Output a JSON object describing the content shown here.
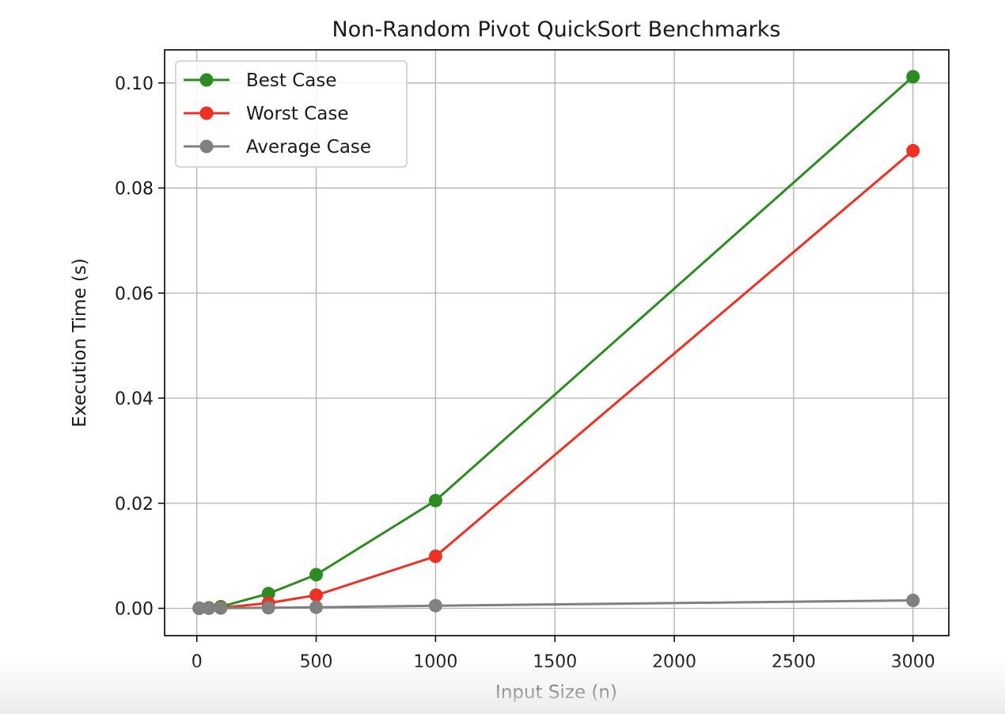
{
  "chart_data": {
    "type": "line",
    "title": "Non-Random Pivot QuickSort Benchmarks",
    "xlabel": "Input Size (n)",
    "ylabel": "Execution Time (s)",
    "xlim": [
      -135,
      3150
    ],
    "ylim": [
      -0.0052,
      0.1063
    ],
    "xticks": [
      0,
      500,
      1000,
      1500,
      2000,
      2500,
      3000
    ],
    "xtick_labels": [
      "0",
      "500",
      "1000",
      "1500",
      "2000",
      "2500",
      "3000"
    ],
    "yticks": [
      0.0,
      0.02,
      0.04,
      0.06,
      0.08,
      0.1
    ],
    "ytick_labels": [
      "0.00",
      "0.02",
      "0.04",
      "0.06",
      "0.08",
      "0.10"
    ],
    "grid": true,
    "legend_position": "upper-left",
    "x": [
      10,
      50,
      100,
      300,
      500,
      1000,
      3000
    ],
    "series": [
      {
        "name": "Best Case",
        "color": "#2e8b22",
        "values": [
          2e-05,
          0.0001,
          0.0003,
          0.0028,
          0.0064,
          0.0205,
          0.1012
        ]
      },
      {
        "name": "Worst Case",
        "color": "#ee3124",
        "values": [
          1e-05,
          5e-05,
          0.0001,
          0.001,
          0.0025,
          0.0099,
          0.0871
        ]
      },
      {
        "name": "Average Case",
        "color": "#808080",
        "values": [
          1e-05,
          2e-05,
          5e-05,
          0.0001,
          0.0002,
          0.0005,
          0.0015
        ]
      }
    ]
  }
}
